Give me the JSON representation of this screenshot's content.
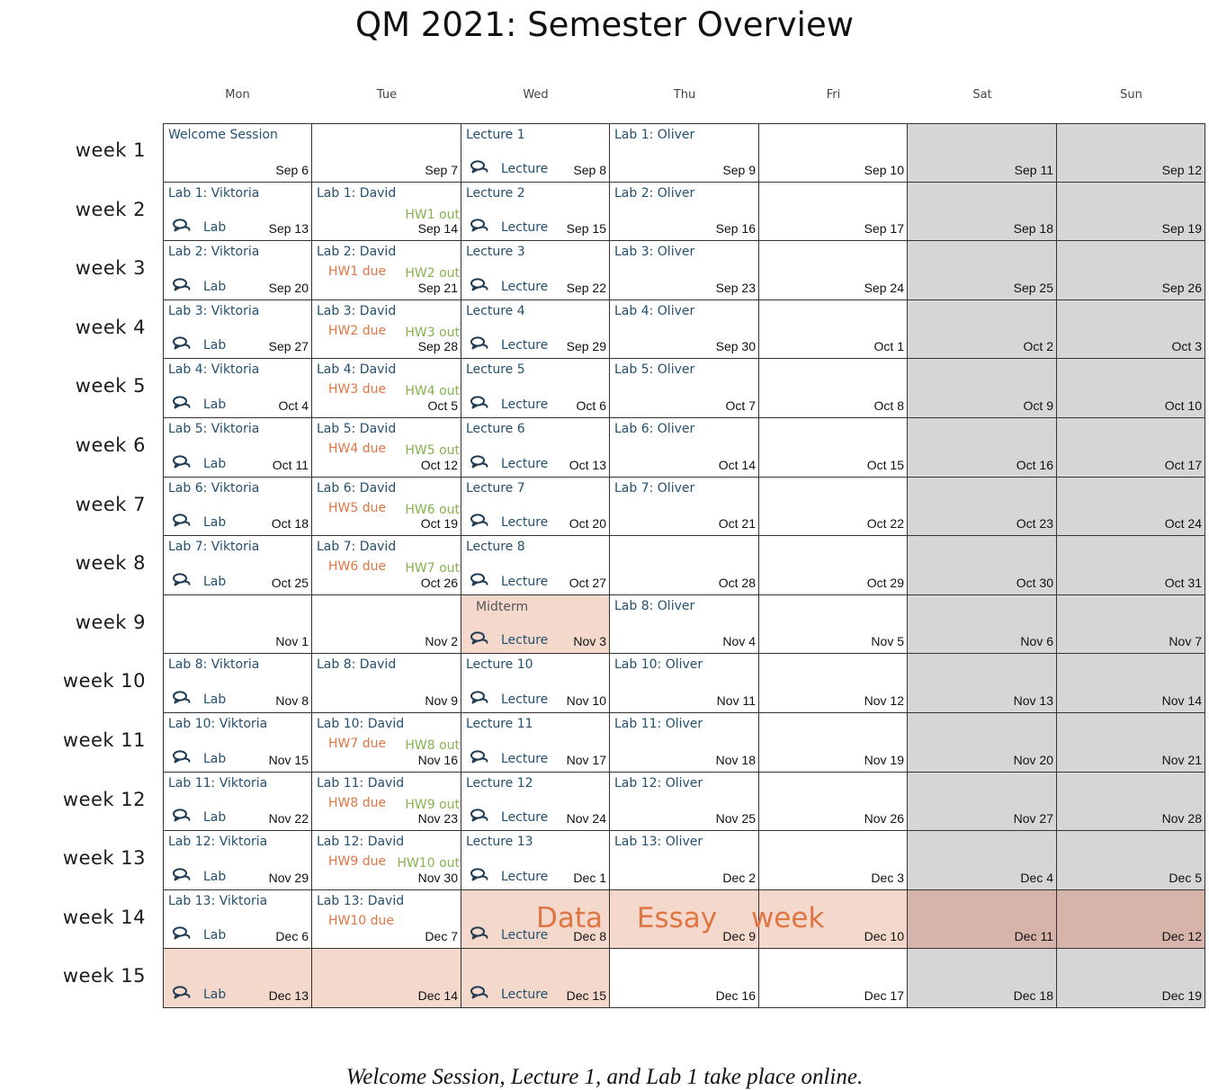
{
  "title": "QM 2021: Semester Overview",
  "footnote": "Welcome Session, Lecture 1, and Lab 1 take place online.",
  "days": [
    "Mon",
    "Tue",
    "Wed",
    "Thu",
    "Fri",
    "Sat",
    "Sun"
  ],
  "colors": {
    "event": "#23506e",
    "due": "#e07544",
    "out": "#86b24e",
    "weekend": "#d6d6d6",
    "highlight": "#f4d8cb",
    "highlight_weekend": "#d6b4aa"
  },
  "icons": {
    "session": "speech-bubbles-icon"
  },
  "essay_week_label": "Data Essay week",
  "weeks": [
    {
      "label": "week 1",
      "cells": [
        {
          "date": "Sep 6",
          "event": "Welcome Session"
        },
        {
          "date": "Sep 7"
        },
        {
          "date": "Sep 8",
          "event": "Lecture 1",
          "session": "Lecture"
        },
        {
          "date": "Sep 9",
          "event": "Lab 1: Oliver"
        },
        {
          "date": "Sep 10"
        },
        {
          "date": "Sep 11"
        },
        {
          "date": "Sep 12"
        }
      ]
    },
    {
      "label": "week 2",
      "cells": [
        {
          "date": "Sep 13",
          "event": "Lab 1: Viktoria",
          "session": "Lab"
        },
        {
          "date": "Sep 14",
          "event": "Lab 1: David",
          "out": "HW1 out"
        },
        {
          "date": "Sep 15",
          "event": "Lecture 2",
          "session": "Lecture"
        },
        {
          "date": "Sep 16",
          "event": "Lab 2: Oliver"
        },
        {
          "date": "Sep 17"
        },
        {
          "date": "Sep 18"
        },
        {
          "date": "Sep 19"
        }
      ]
    },
    {
      "label": "week 3",
      "cells": [
        {
          "date": "Sep 20",
          "event": "Lab 2: Viktoria",
          "session": "Lab"
        },
        {
          "date": "Sep 21",
          "event": "Lab 2: David",
          "due": "HW1 due",
          "out": "HW2 out"
        },
        {
          "date": "Sep 22",
          "event": "Lecture 3",
          "session": "Lecture"
        },
        {
          "date": "Sep 23",
          "event": "Lab 3: Oliver"
        },
        {
          "date": "Sep 24"
        },
        {
          "date": "Sep 25"
        },
        {
          "date": "Sep 26"
        }
      ]
    },
    {
      "label": "week 4",
      "cells": [
        {
          "date": "Sep 27",
          "event": "Lab 3: Viktoria",
          "session": "Lab"
        },
        {
          "date": "Sep 28",
          "event": "Lab 3: David",
          "due": "HW2 due",
          "out": "HW3 out"
        },
        {
          "date": "Sep 29",
          "event": "Lecture 4",
          "session": "Lecture"
        },
        {
          "date": "Sep 30",
          "event": "Lab 4: Oliver"
        },
        {
          "date": "Oct 1"
        },
        {
          "date": "Oct 2"
        },
        {
          "date": "Oct 3"
        }
      ]
    },
    {
      "label": "week 5",
      "cells": [
        {
          "date": "Oct 4",
          "event": "Lab 4: Viktoria",
          "session": "Lab"
        },
        {
          "date": "Oct 5",
          "event": "Lab 4: David",
          "due": "HW3 due",
          "out": "HW4 out"
        },
        {
          "date": "Oct 6",
          "event": "Lecture 5",
          "session": "Lecture"
        },
        {
          "date": "Oct 7",
          "event": "Lab 5: Oliver"
        },
        {
          "date": "Oct 8"
        },
        {
          "date": "Oct 9"
        },
        {
          "date": "Oct 10"
        }
      ]
    },
    {
      "label": "week 6",
      "cells": [
        {
          "date": "Oct 11",
          "event": "Lab 5: Viktoria",
          "session": "Lab"
        },
        {
          "date": "Oct 12",
          "event": "Lab 5: David",
          "due": "HW4 due",
          "out": "HW5 out"
        },
        {
          "date": "Oct 13",
          "event": "Lecture 6",
          "session": "Lecture"
        },
        {
          "date": "Oct 14",
          "event": "Lab 6: Oliver"
        },
        {
          "date": "Oct 15"
        },
        {
          "date": "Oct 16"
        },
        {
          "date": "Oct 17"
        }
      ]
    },
    {
      "label": "week 7",
      "cells": [
        {
          "date": "Oct 18",
          "event": "Lab 6: Viktoria",
          "session": "Lab"
        },
        {
          "date": "Oct 19",
          "event": "Lab 6: David",
          "due": "HW5 due",
          "out": "HW6 out"
        },
        {
          "date": "Oct 20",
          "event": "Lecture 7",
          "session": "Lecture"
        },
        {
          "date": "Oct 21",
          "event": "Lab 7: Oliver"
        },
        {
          "date": "Oct 22"
        },
        {
          "date": "Oct 23"
        },
        {
          "date": "Oct 24"
        }
      ]
    },
    {
      "label": "week 8",
      "cells": [
        {
          "date": "Oct 25",
          "event": "Lab 7: Viktoria",
          "session": "Lab"
        },
        {
          "date": "Oct 26",
          "event": "Lab 7: David",
          "due": "HW6 due",
          "out": "HW7 out"
        },
        {
          "date": "Oct 27",
          "event": "Lecture 8",
          "session": "Lecture"
        },
        {
          "date": "Oct 28"
        },
        {
          "date": "Oct 29"
        },
        {
          "date": "Oct 30"
        },
        {
          "date": "Oct 31"
        }
      ]
    },
    {
      "label": "week 9",
      "cells": [
        {
          "date": "Nov 1"
        },
        {
          "date": "Nov 2"
        },
        {
          "date": "Nov 3",
          "event": "Midterm",
          "session": "Lecture",
          "highlight": true
        },
        {
          "date": "Nov 4",
          "event": "Lab 8: Oliver"
        },
        {
          "date": "Nov 5"
        },
        {
          "date": "Nov 6"
        },
        {
          "date": "Nov 7"
        }
      ]
    },
    {
      "label": "week 10",
      "cells": [
        {
          "date": "Nov 8",
          "event": "Lab 8: Viktoria",
          "session": "Lab"
        },
        {
          "date": "Nov 9",
          "event": "Lab 8: David"
        },
        {
          "date": "Nov 10",
          "event": "Lecture 10",
          "session": "Lecture"
        },
        {
          "date": "Nov 11",
          "event": "Lab 10: Oliver"
        },
        {
          "date": "Nov 12"
        },
        {
          "date": "Nov 13"
        },
        {
          "date": "Nov 14"
        }
      ]
    },
    {
      "label": "week 11",
      "cells": [
        {
          "date": "Nov 15",
          "event": "Lab 10: Viktoria",
          "session": "Lab"
        },
        {
          "date": "Nov 16",
          "event": "Lab 10: David",
          "due": "HW7 due",
          "out": "HW8 out"
        },
        {
          "date": "Nov 17",
          "event": "Lecture 11",
          "session": "Lecture"
        },
        {
          "date": "Nov 18",
          "event": "Lab 11: Oliver"
        },
        {
          "date": "Nov 19"
        },
        {
          "date": "Nov 20"
        },
        {
          "date": "Nov 21"
        }
      ]
    },
    {
      "label": "week 12",
      "cells": [
        {
          "date": "Nov 22",
          "event": "Lab 11: Viktoria",
          "session": "Lab"
        },
        {
          "date": "Nov 23",
          "event": "Lab 11: David",
          "due": "HW8 due",
          "out": "HW9 out"
        },
        {
          "date": "Nov 24",
          "event": "Lecture 12",
          "session": "Lecture"
        },
        {
          "date": "Nov 25",
          "event": "Lab 12: Oliver"
        },
        {
          "date": "Nov 26"
        },
        {
          "date": "Nov 27"
        },
        {
          "date": "Nov 28"
        }
      ]
    },
    {
      "label": "week 13",
      "cells": [
        {
          "date": "Nov 29",
          "event": "Lab 12: Viktoria",
          "session": "Lab"
        },
        {
          "date": "Nov 30",
          "event": "Lab 12: David",
          "due": "HW9 due",
          "out": "HW10 out"
        },
        {
          "date": "Dec 1",
          "event": "Lecture 13",
          "session": "Lecture"
        },
        {
          "date": "Dec 2",
          "event": "Lab 13: Oliver"
        },
        {
          "date": "Dec 3"
        },
        {
          "date": "Dec 4"
        },
        {
          "date": "Dec 5"
        }
      ]
    },
    {
      "label": "week 14",
      "cells": [
        {
          "date": "Dec 6",
          "event": "Lab 13: Viktoria",
          "session": "Lab"
        },
        {
          "date": "Dec 7",
          "event": "Lab 13: David",
          "due": "HW10 due"
        },
        {
          "date": "Dec 8",
          "session": "Lecture",
          "highlight": true
        },
        {
          "date": "Dec 9",
          "highlight": true
        },
        {
          "date": "Dec 10",
          "highlight": true
        },
        {
          "date": "Dec 11",
          "highlight": true
        },
        {
          "date": "Dec 12",
          "highlight": true
        }
      ]
    },
    {
      "label": "week 15",
      "cells": [
        {
          "date": "Dec 13",
          "session": "Lab",
          "highlight": true
        },
        {
          "date": "Dec 14",
          "highlight": true
        },
        {
          "date": "Dec 15",
          "session": "Lecture",
          "highlight": true
        },
        {
          "date": "Dec 16"
        },
        {
          "date": "Dec 17"
        },
        {
          "date": "Dec 18"
        },
        {
          "date": "Dec 19"
        }
      ]
    }
  ]
}
